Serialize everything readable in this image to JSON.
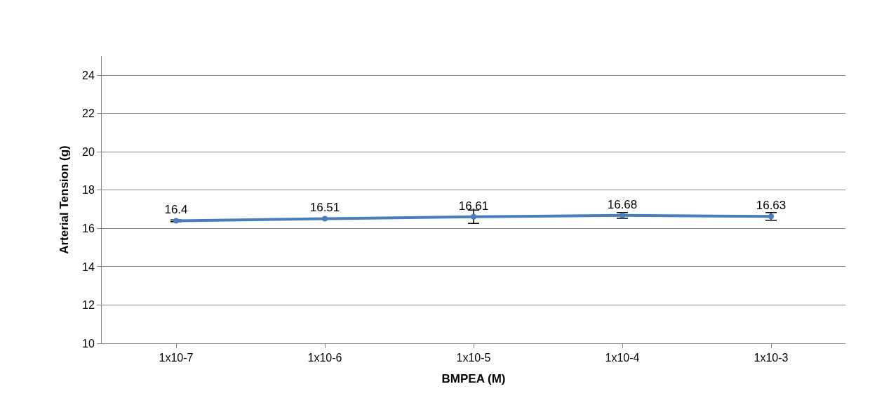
{
  "chart_data": {
    "type": "line",
    "xlabel": "BMPEA (M)",
    "ylabel": "Arterial Tension (g)",
    "categories": [
      "1x10-7",
      "1x10-6",
      "1x10-5",
      "1x10-4",
      "1x10-3"
    ],
    "series": [
      {
        "color": "#4a7ebb",
        "values": [
          16.4,
          16.51,
          16.61,
          16.68,
          16.63
        ],
        "errors": [
          0.05,
          0.03,
          0.35,
          0.15,
          0.2
        ]
      }
    ],
    "ylim": [
      10,
      25
    ],
    "yticks": [
      10,
      12,
      14,
      16,
      18,
      20,
      22,
      24
    ],
    "grid": "y",
    "legend": false,
    "marker": "circle",
    "line_style": "solid",
    "data_labels": true
  }
}
